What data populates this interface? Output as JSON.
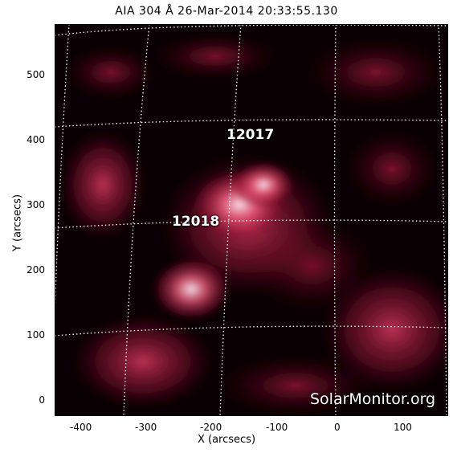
{
  "title": "AIA 304 Å 26-Mar-2014 20:33:55.130",
  "xlabel": "X (arcsecs)",
  "ylabel": "Y (arcsecs)",
  "xticks": [
    "-400",
    "-300",
    "-200",
    "-100",
    "0",
    "100"
  ],
  "yticks": [
    "500",
    "400",
    "300",
    "200",
    "100",
    "0"
  ],
  "regions": [
    "12017",
    "12018"
  ],
  "credit": "SolarMonitor.org",
  "colors": {
    "background": "#000000",
    "plasma": "#c8204a",
    "bright": "#ffd6e4",
    "grid": "#ffffff"
  }
}
